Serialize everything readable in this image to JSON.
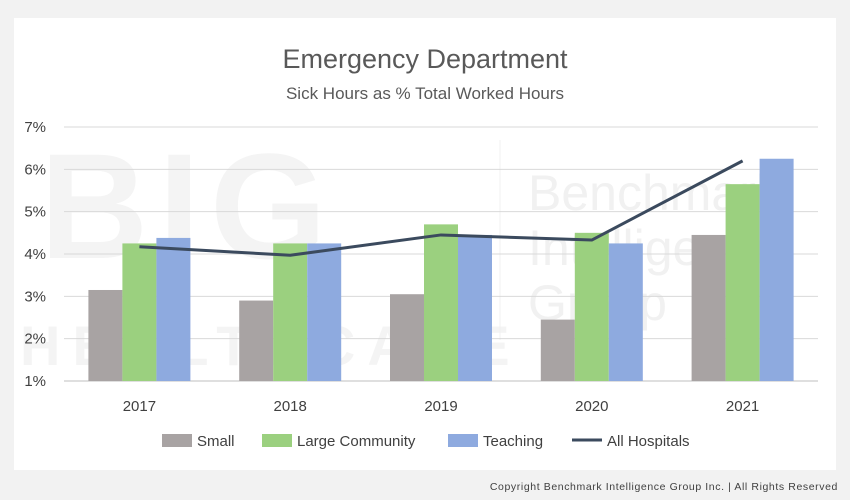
{
  "chart_data": {
    "type": "bar",
    "title": "Emergency Department",
    "subtitle": "Sick Hours as % Total Worked Hours",
    "categories": [
      "2017",
      "2018",
      "2019",
      "2020",
      "2021"
    ],
    "series": [
      {
        "name": "Small",
        "kind": "bar",
        "color": "#a8a3a3",
        "values": [
          3.15,
          2.9,
          3.05,
          2.45,
          4.45
        ]
      },
      {
        "name": "Large Community",
        "kind": "bar",
        "color": "#9bd07f",
        "values": [
          4.25,
          4.25,
          4.7,
          4.5,
          5.65
        ]
      },
      {
        "name": "Teaching",
        "kind": "bar",
        "color": "#8eaadf",
        "values": [
          4.38,
          4.25,
          4.45,
          4.25,
          6.25
        ]
      },
      {
        "name": "All Hospitals",
        "kind": "line",
        "color": "#3b4a5e",
        "values": [
          4.17,
          3.97,
          4.45,
          4.33,
          6.2
        ]
      }
    ],
    "ylim": [
      1,
      7
    ],
    "yticks": [
      "1%",
      "2%",
      "3%",
      "4%",
      "5%",
      "6%",
      "7%"
    ],
    "ytick_values": [
      1,
      2,
      3,
      4,
      5,
      6,
      7
    ],
    "grid": true,
    "legend_position": "bottom"
  },
  "watermark": {
    "letters": "BIG",
    "word": "HEALTHCARE",
    "lines": [
      "Benchmark",
      "Intelligence",
      "Group"
    ]
  },
  "copyright": "Copyright Benchmark Intelligence Group Inc. | All Rights Reserved"
}
